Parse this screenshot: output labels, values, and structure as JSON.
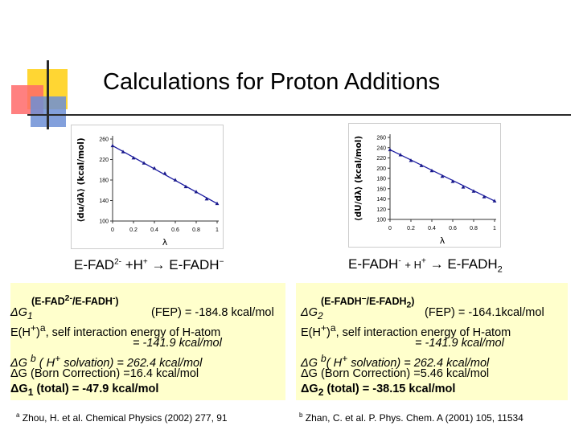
{
  "title": "Calculations for Proton Additions",
  "chart_data": [
    {
      "type": "scatter",
      "ylabel": "⟨du/dλ⟩ (kcal/mol)",
      "xlabel": "λ",
      "xlim": [
        0,
        1
      ],
      "ylim": [
        100,
        260
      ],
      "xticks": [
        "0",
        "0.2",
        "0.4",
        "0.6",
        "0.8",
        "1"
      ],
      "yticks": [
        "100",
        "140",
        "180",
        "220",
        "260"
      ],
      "x": [
        0,
        0.1,
        0.2,
        0.3,
        0.4,
        0.5,
        0.6,
        0.7,
        0.8,
        0.9,
        1.0
      ],
      "y": [
        247,
        235,
        223,
        213,
        203,
        193,
        180,
        167,
        157,
        143,
        134
      ],
      "title": "",
      "grid": false
    },
    {
      "type": "scatter",
      "ylabel": "⟨dU/dλ⟩ (kcal/mol)",
      "xlabel": "λ",
      "xlim": [
        0,
        1
      ],
      "ylim": [
        100,
        260
      ],
      "xticks": [
        "0",
        "0.2",
        "0.4",
        "0.6",
        "0.8",
        "1"
      ],
      "yticks": [
        "100",
        "120",
        "140",
        "160",
        "180",
        "200",
        "220",
        "240",
        "260"
      ],
      "x": [
        0,
        0.1,
        0.2,
        0.3,
        0.4,
        0.5,
        0.6,
        0.7,
        0.8,
        0.9,
        1.0
      ],
      "y": [
        236,
        226,
        215,
        205,
        195,
        184,
        174,
        163,
        155,
        144,
        136
      ],
      "title": "",
      "grid": false
    }
  ],
  "left": {
    "eq_a": "E-FAD",
    "eq_a_sup": "2-",
    "eq_b": "+H",
    "eq_b_sup": "+",
    "eq_arrow": "→",
    "eq_c": "E-FADH",
    "eq_c_sup": "−",
    "box_label": "(E-FAD",
    "box_label_sup": "2-",
    "box_label_mid": "/E-FADH",
    "box_label_sup2": "-",
    "box_label_end": ")",
    "dg1": "ΔG",
    "dg1_sub": "1",
    "dg1_value": "(FEP) = -184.8 kcal/mol",
    "eh_prefix": "E(H",
    "eh_sup": "+",
    "eh_mid": ")",
    "eh_sup_a": "a",
    "eh_text": ", self interaction energy of H-atom",
    "eh_value": "= -141.9 kcal/mol",
    "solv_prefix": "ΔG",
    "solv_sup_b": "b",
    "solv_text": "( H",
    "solv_sup_plus": "+",
    "solv_value": "solvation) = 262.4 kcal/mol",
    "born": "ΔG (Born Correction) =16.4 kcal/mol",
    "total_prefix": "ΔG",
    "total_sub": "1",
    "total_value": "(total) = -47.9 kcal/mol",
    "footnote_sup": "a",
    "footnote": "Zhou, H. et al. Chemical Physics (2002) 277, 91"
  },
  "right": {
    "eq_a": "E-FADH",
    "eq_a_sup": "-",
    "eq_b": "+ H",
    "eq_b_sup": "+",
    "eq_arrow": "→",
    "eq_c": "E-FADH",
    "eq_c_sub": "2",
    "box_label": "(E-FADH",
    "box_label_sup": "–",
    "box_label_mid": "/E-FADH",
    "box_label_sub": "2",
    "box_label_end": ")",
    "dg2": "ΔG",
    "dg2_sub": "2",
    "dg2_value": "(FEP) = -164.1kcal/mol",
    "eh_prefix": "E(H",
    "eh_sup": "+",
    "eh_mid": ")",
    "eh_sup_a": "a",
    "eh_text": ", self interaction energy of H-atom",
    "eh_value": "= -141.9 kcal/mol",
    "solv_prefix": "ΔG",
    "solv_sup_b": "b",
    "solv_text": "( H",
    "solv_sup_plus": "+",
    "solv_value": "solvation) = 262.4 kcal/mol",
    "born": "ΔG (Born Correction) =5.46 kcal/mol",
    "total_prefix": "ΔG",
    "total_sub": "2",
    "total_value": "(total) = -38.15 kcal/mol",
    "footnote_sup": "b",
    "footnote": "Zhan, C. et al. P. Phys. Chem. A (2001) 105, 11534"
  }
}
